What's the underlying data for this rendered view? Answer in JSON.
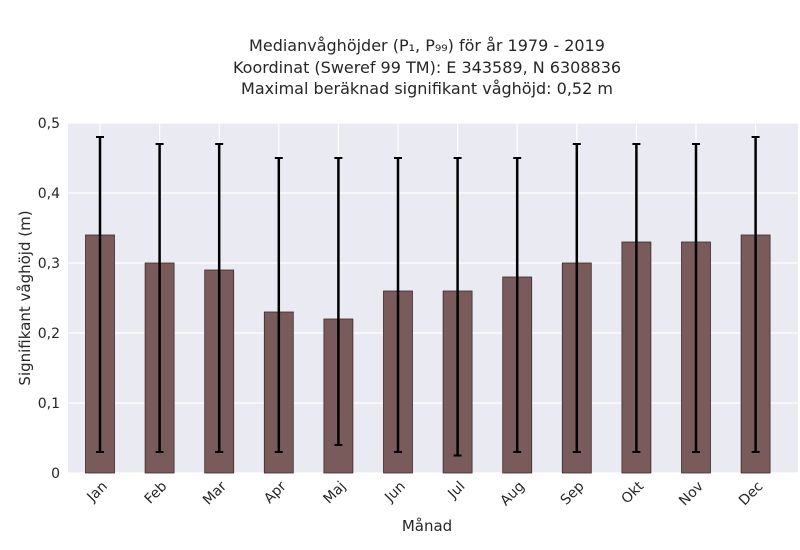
{
  "chart_data": {
    "type": "bar",
    "title_lines": [
      "Medianvåghöjder (P₁, P₉₉) för år 1979 - 2019",
      "Koordinat (Sweref 99 TM): E 343589, N 6308836",
      "Maximal beräknad signifikant våghöjd: 0,52 m"
    ],
    "xlabel": "Månad",
    "ylabel": "Signifikant våghöjd (m)",
    "categories": [
      "Jan",
      "Feb",
      "Mar",
      "Apr",
      "Maj",
      "Jun",
      "Jul",
      "Aug",
      "Sep",
      "Okt",
      "Nov",
      "Dec"
    ],
    "values": [
      0.34,
      0.3,
      0.29,
      0.23,
      0.22,
      0.26,
      0.26,
      0.28,
      0.3,
      0.33,
      0.33,
      0.34
    ],
    "error_low": [
      0.03,
      0.03,
      0.03,
      0.03,
      0.04,
      0.03,
      0.025,
      0.03,
      0.03,
      0.03,
      0.03,
      0.03
    ],
    "error_high": [
      0.48,
      0.47,
      0.47,
      0.45,
      0.45,
      0.45,
      0.45,
      0.45,
      0.47,
      0.47,
      0.47,
      0.48
    ],
    "ylim": [
      0,
      0.5
    ],
    "yticks": [
      0,
      0.1,
      0.2,
      0.3,
      0.4,
      0.5
    ],
    "ytick_labels": [
      "0",
      "0,1",
      "0,2",
      "0,3",
      "0,4",
      "0,5"
    ],
    "grid": true,
    "colors": {
      "bar": "#7a5b5b",
      "bar_edge": "#3c2a2a",
      "plot_background": "#eaeaf2",
      "grid": "#ffffff",
      "error_bar": "#000000"
    }
  }
}
